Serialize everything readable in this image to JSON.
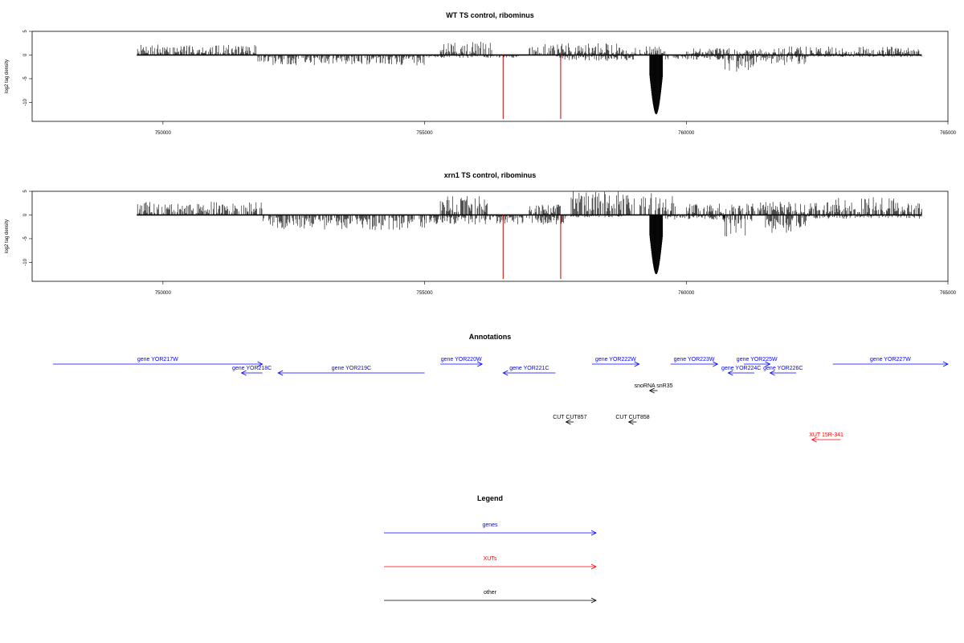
{
  "colors": {
    "gene": "#0000ff",
    "xut": "#ff0000",
    "other": "#000000",
    "spike": "#cc0000"
  },
  "chart_data": [
    {
      "type": "bar",
      "title": "WT TS control, ribominus",
      "ylabel": "log2 tag density",
      "xlim": [
        747500,
        765000
      ],
      "ylim": [
        -14,
        5
      ],
      "xticks": [
        750000,
        755000,
        760000,
        765000
      ],
      "xtick_labels": [
        "750000",
        "755000",
        "760000",
        "765000"
      ],
      "yticks": [
        5,
        0,
        -5,
        -10
      ],
      "ytick_labels": [
        "5",
        "0",
        "-5",
        "-10"
      ],
      "grid": false,
      "data_range": [
        749500,
        764500
      ],
      "series": [
        {
          "strand": "+",
          "segments": [
            [
              749500,
              751800,
              2.2
            ],
            [
              755300,
              756300,
              2.8
            ],
            [
              757000,
              758800,
              2.5
            ],
            [
              758800,
              759000,
              1.0
            ],
            [
              759000,
              759600,
              1.8
            ],
            [
              760000,
              761600,
              1.5
            ],
            [
              761600,
              764500,
              1.8
            ]
          ]
        },
        {
          "strand": "-",
          "segments": [
            [
              751800,
              755000,
              -2.2
            ],
            [
              755000,
              756800,
              -0.6
            ],
            [
              757500,
              759000,
              -1.2
            ],
            [
              759600,
              760700,
              -1.0
            ],
            [
              760700,
              761300,
              -3.8
            ],
            [
              761300,
              762300,
              -2.2
            ],
            [
              762300,
              764500,
              -0.4
            ]
          ]
        },
        {
          "strand": "-",
          "name": "",
          "segments": [
            [
              759300,
              759550,
              -12.5
            ]
          ]
        }
      ],
      "spikes": [
        {
          "x": 756500,
          "y": -13.5
        },
        {
          "x": 757600,
          "y": -13.5
        }
      ]
    },
    {
      "type": "bar",
      "title": "xrn1 TS control, ribominus",
      "ylabel": "log2 tag density",
      "xlim": [
        747500,
        765000
      ],
      "ylim": [
        -14,
        5
      ],
      "xticks": [
        750000,
        755000,
        760000,
        765000
      ],
      "xtick_labels": [
        "750000",
        "755000",
        "760000",
        "765000"
      ],
      "yticks": [
        5,
        0,
        -5,
        -10
      ],
      "ytick_labels": [
        "5",
        "0",
        "-5",
        "-10"
      ],
      "grid": false,
      "data_range": [
        749500,
        764500
      ],
      "series": [
        {
          "strand": "+",
          "segments": [
            [
              749500,
              751900,
              2.8
            ],
            [
              755300,
              756200,
              4.0
            ],
            [
              757000,
              757600,
              2.2
            ],
            [
              757800,
              759800,
              5.0
            ],
            [
              760000,
              761200,
              2.4
            ],
            [
              761200,
              762800,
              2.8
            ],
            [
              762800,
              764500,
              3.8
            ]
          ]
        },
        {
          "strand": "-",
          "segments": [
            [
              751900,
              755000,
              -3.2
            ],
            [
              755000,
              757700,
              -2.0
            ],
            [
              757700,
              758800,
              -0.5
            ],
            [
              759600,
              760800,
              -1.0
            ],
            [
              760700,
              761300,
              -4.8
            ],
            [
              761500,
              762300,
              -3.8
            ],
            [
              762300,
              764500,
              -0.8
            ]
          ]
        },
        {
          "strand": "-",
          "name": "",
          "segments": [
            [
              759300,
              759550,
              -12.5
            ]
          ]
        }
      ],
      "spikes": [
        {
          "x": 756500,
          "y": -13.5
        },
        {
          "x": 757600,
          "y": -13.5
        }
      ]
    }
  ],
  "annotations": {
    "title": "Annotations",
    "features": [
      {
        "label": "gene YOR217W",
        "type": "gene",
        "start": 747200,
        "end": 751900,
        "strand": "+",
        "row": 0
      },
      {
        "label": "gene YOR218C",
        "type": "gene",
        "start": 751500,
        "end": 751900,
        "strand": "-",
        "row": 1
      },
      {
        "label": "gene YOR219C",
        "type": "gene",
        "start": 752200,
        "end": 755000,
        "strand": "-",
        "row": 1
      },
      {
        "label": "gene YOR220W",
        "type": "gene",
        "start": 755300,
        "end": 756100,
        "strand": "+",
        "row": 0
      },
      {
        "label": "gene YOR221C",
        "type": "gene",
        "start": 756500,
        "end": 757500,
        "strand": "-",
        "row": 1
      },
      {
        "label": "gene YOR222W",
        "type": "gene",
        "start": 758200,
        "end": 759100,
        "strand": "+",
        "row": 0
      },
      {
        "label": "gene YOR223W",
        "type": "gene",
        "start": 759700,
        "end": 760600,
        "strand": "+",
        "row": 0
      },
      {
        "label": "gene YOR224C",
        "type": "gene",
        "start": 760800,
        "end": 761300,
        "strand": "-",
        "row": 1
      },
      {
        "label": "gene YOR225W",
        "type": "gene",
        "start": 761100,
        "end": 761600,
        "strand": "+",
        "row": 0
      },
      {
        "label": "gene YOR226C",
        "type": "gene",
        "start": 761600,
        "end": 762100,
        "strand": "-",
        "row": 1
      },
      {
        "label": "gene YOR227W",
        "type": "gene",
        "start": 762800,
        "end": 765100,
        "strand": "+",
        "row": 0
      },
      {
        "label": "snoRNA snR35",
        "type": "other",
        "start": 759300,
        "end": 759450,
        "strand": "-",
        "row": 2
      },
      {
        "label": "CUT CUT857",
        "type": "other",
        "start": 757700,
        "end": 757850,
        "strand": "-",
        "row": 4
      },
      {
        "label": "CUT CUT858",
        "type": "other",
        "start": 758900,
        "end": 759050,
        "strand": "-",
        "row": 4
      },
      {
        "label": "XUT 15R-341",
        "type": "xut",
        "start": 762400,
        "end": 762950,
        "strand": "-",
        "row": 5
      }
    ]
  },
  "legend": {
    "title": "Legend",
    "items": [
      {
        "label": "genes",
        "type": "gene"
      },
      {
        "label": "XUTs",
        "type": "xut"
      },
      {
        "label": "other",
        "type": "other"
      }
    ]
  }
}
